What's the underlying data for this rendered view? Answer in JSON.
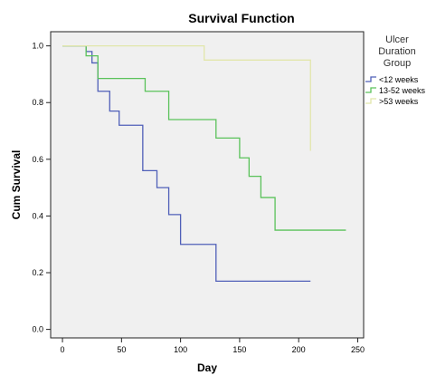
{
  "chart_data": {
    "type": "line",
    "title": "Survival Function",
    "xlabel": "Day",
    "ylabel": "Cum Survival",
    "xlim": [
      -10,
      255
    ],
    "ylim": [
      -0.03,
      1.05
    ],
    "xticks": [
      0,
      50,
      100,
      150,
      200,
      250
    ],
    "yticks": [
      0.0,
      0.2,
      0.4,
      0.6,
      0.8,
      1.0
    ],
    "xtick_labels": [
      "0",
      "50",
      "100",
      "150",
      "200",
      "250"
    ],
    "ytick_labels": [
      "0.0",
      "0.2",
      "0.4",
      "0.6",
      "0.8",
      "1.0"
    ],
    "grid": false,
    "legend": {
      "title_lines": [
        "Ulcer",
        "Duration",
        "Group"
      ],
      "position": "right"
    },
    "series": [
      {
        "name": "<12 weeks",
        "color": "#4f5fb8",
        "step": true,
        "x": [
          0,
          20,
          25,
          30,
          40,
          48,
          68,
          80,
          90,
          100,
          130,
          210
        ],
        "y": [
          1.0,
          0.98,
          0.94,
          0.84,
          0.77,
          0.72,
          0.56,
          0.5,
          0.405,
          0.3,
          0.17,
          0.17
        ]
      },
      {
        "name": "13-52 weeks",
        "color": "#5ac25a",
        "step": true,
        "x": [
          0,
          20,
          30,
          70,
          90,
          130,
          150,
          158,
          168,
          180,
          240
        ],
        "y": [
          1.0,
          0.965,
          0.885,
          0.84,
          0.74,
          0.675,
          0.605,
          0.54,
          0.465,
          0.35,
          0.35
        ]
      },
      {
        "name": ">53 weeks",
        "color": "#e2e6ab",
        "step": true,
        "x": [
          0,
          120,
          210,
          210
        ],
        "y": [
          1.0,
          0.95,
          0.95,
          0.63
        ]
      }
    ]
  }
}
